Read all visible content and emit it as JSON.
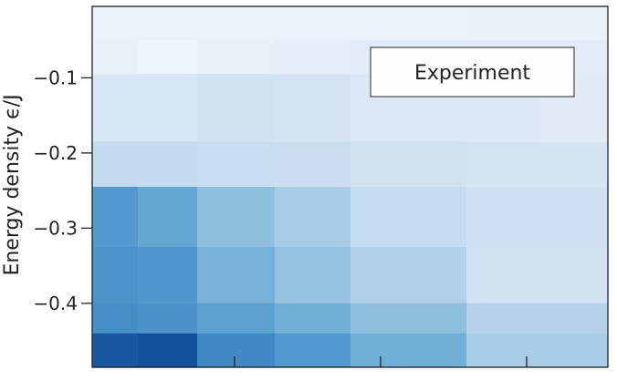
{
  "chart_data": {
    "type": "heatmap",
    "title": "",
    "xlabel": "",
    "ylabel": "Energy density ϵ/J",
    "legend": {
      "label": "Experiment",
      "placement": "top-right"
    },
    "x_ticks": [
      "",
      "",
      ""
    ],
    "y_ticks": [
      {
        "value": -0.1,
        "label": "−0.1"
      },
      {
        "value": -0.2,
        "label": "−0.2"
      },
      {
        "value": -0.3,
        "label": "−0.3"
      },
      {
        "value": -0.4,
        "label": "−0.4"
      }
    ],
    "ylim": [
      -0.485,
      -0.005
    ],
    "y_edges": [
      -0.005,
      -0.05,
      -0.095,
      -0.185,
      -0.245,
      -0.325,
      -0.4,
      -0.44,
      -0.485
    ],
    "columns": 7,
    "value_range": [
      0,
      1
    ],
    "colormap": [
      "#f4f8fd",
      "#d2e2f3",
      "#b3d2e9",
      "#84b9dc",
      "#58a0d0",
      "#3b83c1",
      "#0b4b96"
    ],
    "grid": false,
    "values": [
      [
        0.05,
        0.05,
        0.05,
        0.05,
        0.05,
        0.06,
        0.06
      ],
      [
        0.06,
        0.03,
        0.06,
        0.07,
        0.09,
        0.09,
        0.09
      ],
      [
        0.14,
        0.14,
        0.17,
        0.16,
        0.12,
        0.12,
        0.1
      ],
      [
        0.24,
        0.24,
        0.22,
        0.2,
        0.18,
        0.15,
        0.15
      ],
      [
        0.7,
        0.62,
        0.46,
        0.38,
        0.23,
        0.19,
        0.19
      ],
      [
        0.74,
        0.71,
        0.55,
        0.44,
        0.34,
        0.17,
        0.17
      ],
      [
        0.77,
        0.75,
        0.66,
        0.57,
        0.46,
        0.33,
        0.33
      ],
      [
        0.96,
        0.98,
        0.8,
        0.7,
        0.57,
        0.37,
        0.37
      ]
    ]
  }
}
